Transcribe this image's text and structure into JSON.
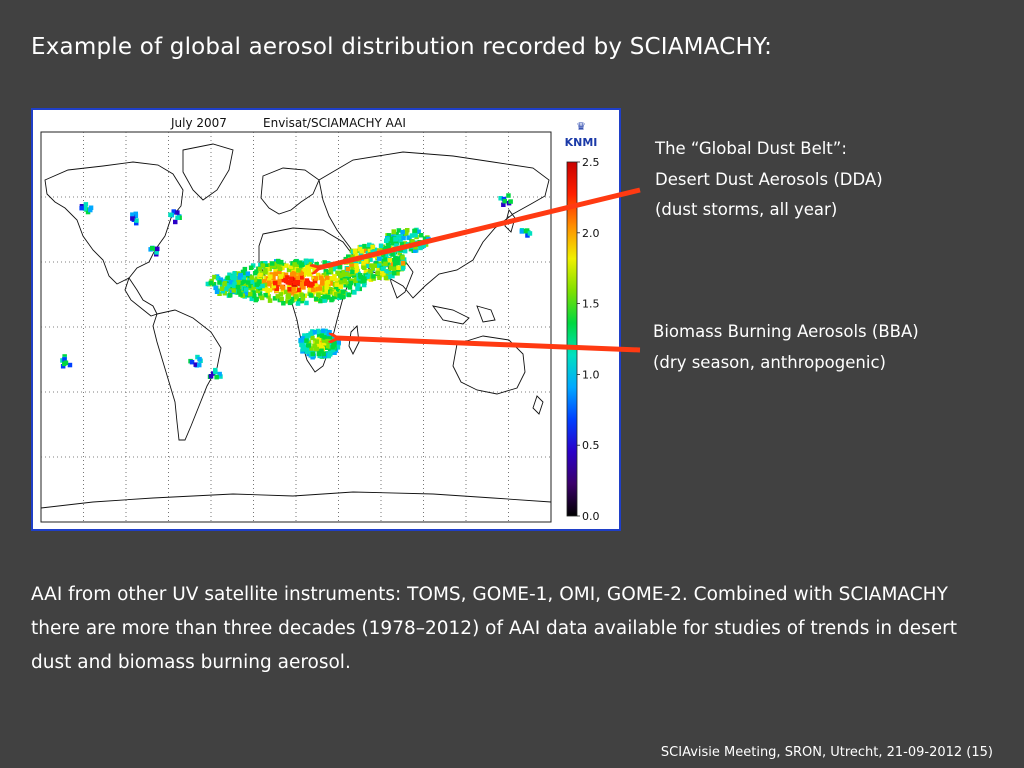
{
  "slide": {
    "title": "Example of global aerosol distribution recorded by SCIAMACHY:",
    "footer": "SCIAvisie Meeting, SRON, Utrecht, 21-09-2012   (15)"
  },
  "map": {
    "date_label": "July 2007",
    "product_label": "Envisat/SCIAMACHY AAI",
    "logo_text": "KNMI",
    "colorbar_ticks": [
      "2.5",
      "2.0",
      "1.5",
      "1.0",
      "0.5",
      "0.0"
    ],
    "colorbar_range": [
      0.0,
      2.5
    ],
    "colorbar_colors": [
      "#000000",
      "#3a006a",
      "#2a00c8",
      "#0040ff",
      "#00a8ff",
      "#00e0c0",
      "#00d840",
      "#80e000",
      "#f0f000",
      "#ff9000",
      "#ff2000",
      "#c80000"
    ],
    "dust_belt_aai_range": [
      1.0,
      2.5
    ],
    "biomass_aai_range": [
      0.8,
      2.0
    ]
  },
  "annotations": {
    "dda_lines": [
      "The “Global Dust Belt”:",
      "Desert Dust Aerosols (DDA)",
      "(dust storms, all year)"
    ],
    "bba_lines": [
      "Biomass Burning Aerosols (BBA)",
      "(dry season, anthropogenic)"
    ],
    "arrow_color": "#ff3a12"
  },
  "bottom_text": "AAI from other UV satellite instruments: TOMS, GOME-1, OMI, GOME-2. Combined with SCIAMACHY there are more than three decades (1978–2012) of AAI data available for studies of trends in desert dust and biomass burning aerosol."
}
